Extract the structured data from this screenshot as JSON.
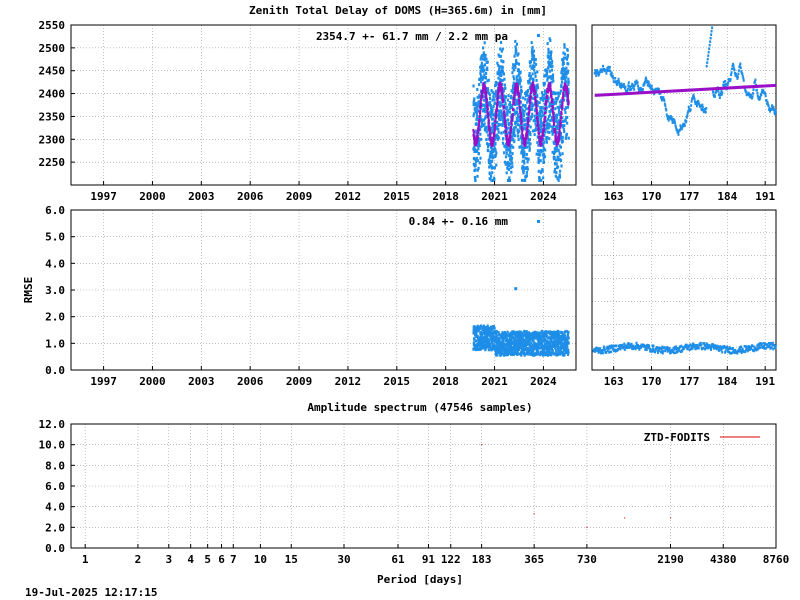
{
  "colors": {
    "ztd_points": "#1e8ee8",
    "ztd_model": "#9a10c8",
    "spectrum": "#e00000"
  },
  "chart_data": [
    {
      "type": "scatter",
      "title": "Zenith Total Delay of DOMS (H=365.6m) in [mm]",
      "annotation": "2354.7 +-  61.7 mm /  2.2 mm pa",
      "xlim": [
        1995,
        2026
      ],
      "ylim": [
        2200,
        2550
      ],
      "xticks": [
        "1997",
        "2000",
        "2003",
        "2006",
        "2009",
        "2012",
        "2015",
        "2018",
        "2021",
        "2024"
      ],
      "yticks": [
        "2250",
        "2300",
        "2350",
        "2400",
        "2450",
        "2500",
        "2550"
      ],
      "grid": true,
      "series": [
        {
          "data_start": 2019.7,
          "data_end": 2025.55,
          "mean": 2354.7,
          "amplitude": 61.7,
          "min": 2210,
          "max": 2520
        }
      ]
    },
    {
      "type": "scatter",
      "xlim": [
        159,
        193
      ],
      "ylim": [
        2200,
        2550
      ],
      "xticks": [
        "163",
        "170",
        "177",
        "184",
        "191"
      ],
      "grid": true,
      "trend_start": 2396,
      "trend_end": 2418
    },
    {
      "type": "scatter",
      "ylabel": "RMSE",
      "annotation": "0.84 +-  0.16 mm",
      "xlim": [
        1995,
        2026
      ],
      "ylim": [
        0,
        6
      ],
      "xticks": [
        "1997",
        "2000",
        "2003",
        "2006",
        "2009",
        "2012",
        "2015",
        "2018",
        "2021",
        "2024"
      ],
      "yticks": [
        "0.0",
        "1.0",
        "2.0",
        "3.0",
        "4.0",
        "5.0",
        "6.0"
      ],
      "grid": true,
      "series": [
        {
          "data_start": 2019.7,
          "data_end": 2025.55,
          "typical": 1.0,
          "outlier": [
            2022.3,
            3.05
          ]
        }
      ]
    },
    {
      "type": "scatter",
      "xlim": [
        159,
        193
      ],
      "ylim": [
        0,
        6
      ],
      "xticks": [
        "163",
        "170",
        "177",
        "184",
        "191"
      ],
      "grid": true,
      "typical": 0.82
    },
    {
      "type": "line",
      "title": "Amplitude spectrum (47546 samples)",
      "xlabel": "Period [days]",
      "xscale": "log",
      "xlim": [
        0.83,
        8760
      ],
      "ylim": [
        0,
        12
      ],
      "xticks": [
        "1",
        "2",
        "3",
        "4",
        "5",
        "6",
        "7",
        "10",
        "15",
        "30",
        "61",
        "91",
        "122",
        "183",
        "365",
        "730",
        "2190",
        "4380",
        "8760"
      ],
      "yticks": [
        "0.0",
        "2.0",
        "4.0",
        "6.0",
        "8.0",
        "10.0",
        "12.0"
      ],
      "legend": "ZTD-FODITS",
      "legend_position": "top-right",
      "peaks": [
        {
          "period": 183,
          "amplitude": 10.0
        },
        {
          "period": 365,
          "amplitude": 3.3
        },
        {
          "period": 730,
          "amplitude": 2.0
        },
        {
          "period": 1200,
          "amplitude": 2.9
        },
        {
          "period": 2190,
          "amplitude": 2.9
        }
      ]
    }
  ],
  "footer": {
    "timestamp": "19-Jul-2025 12:17:15"
  }
}
